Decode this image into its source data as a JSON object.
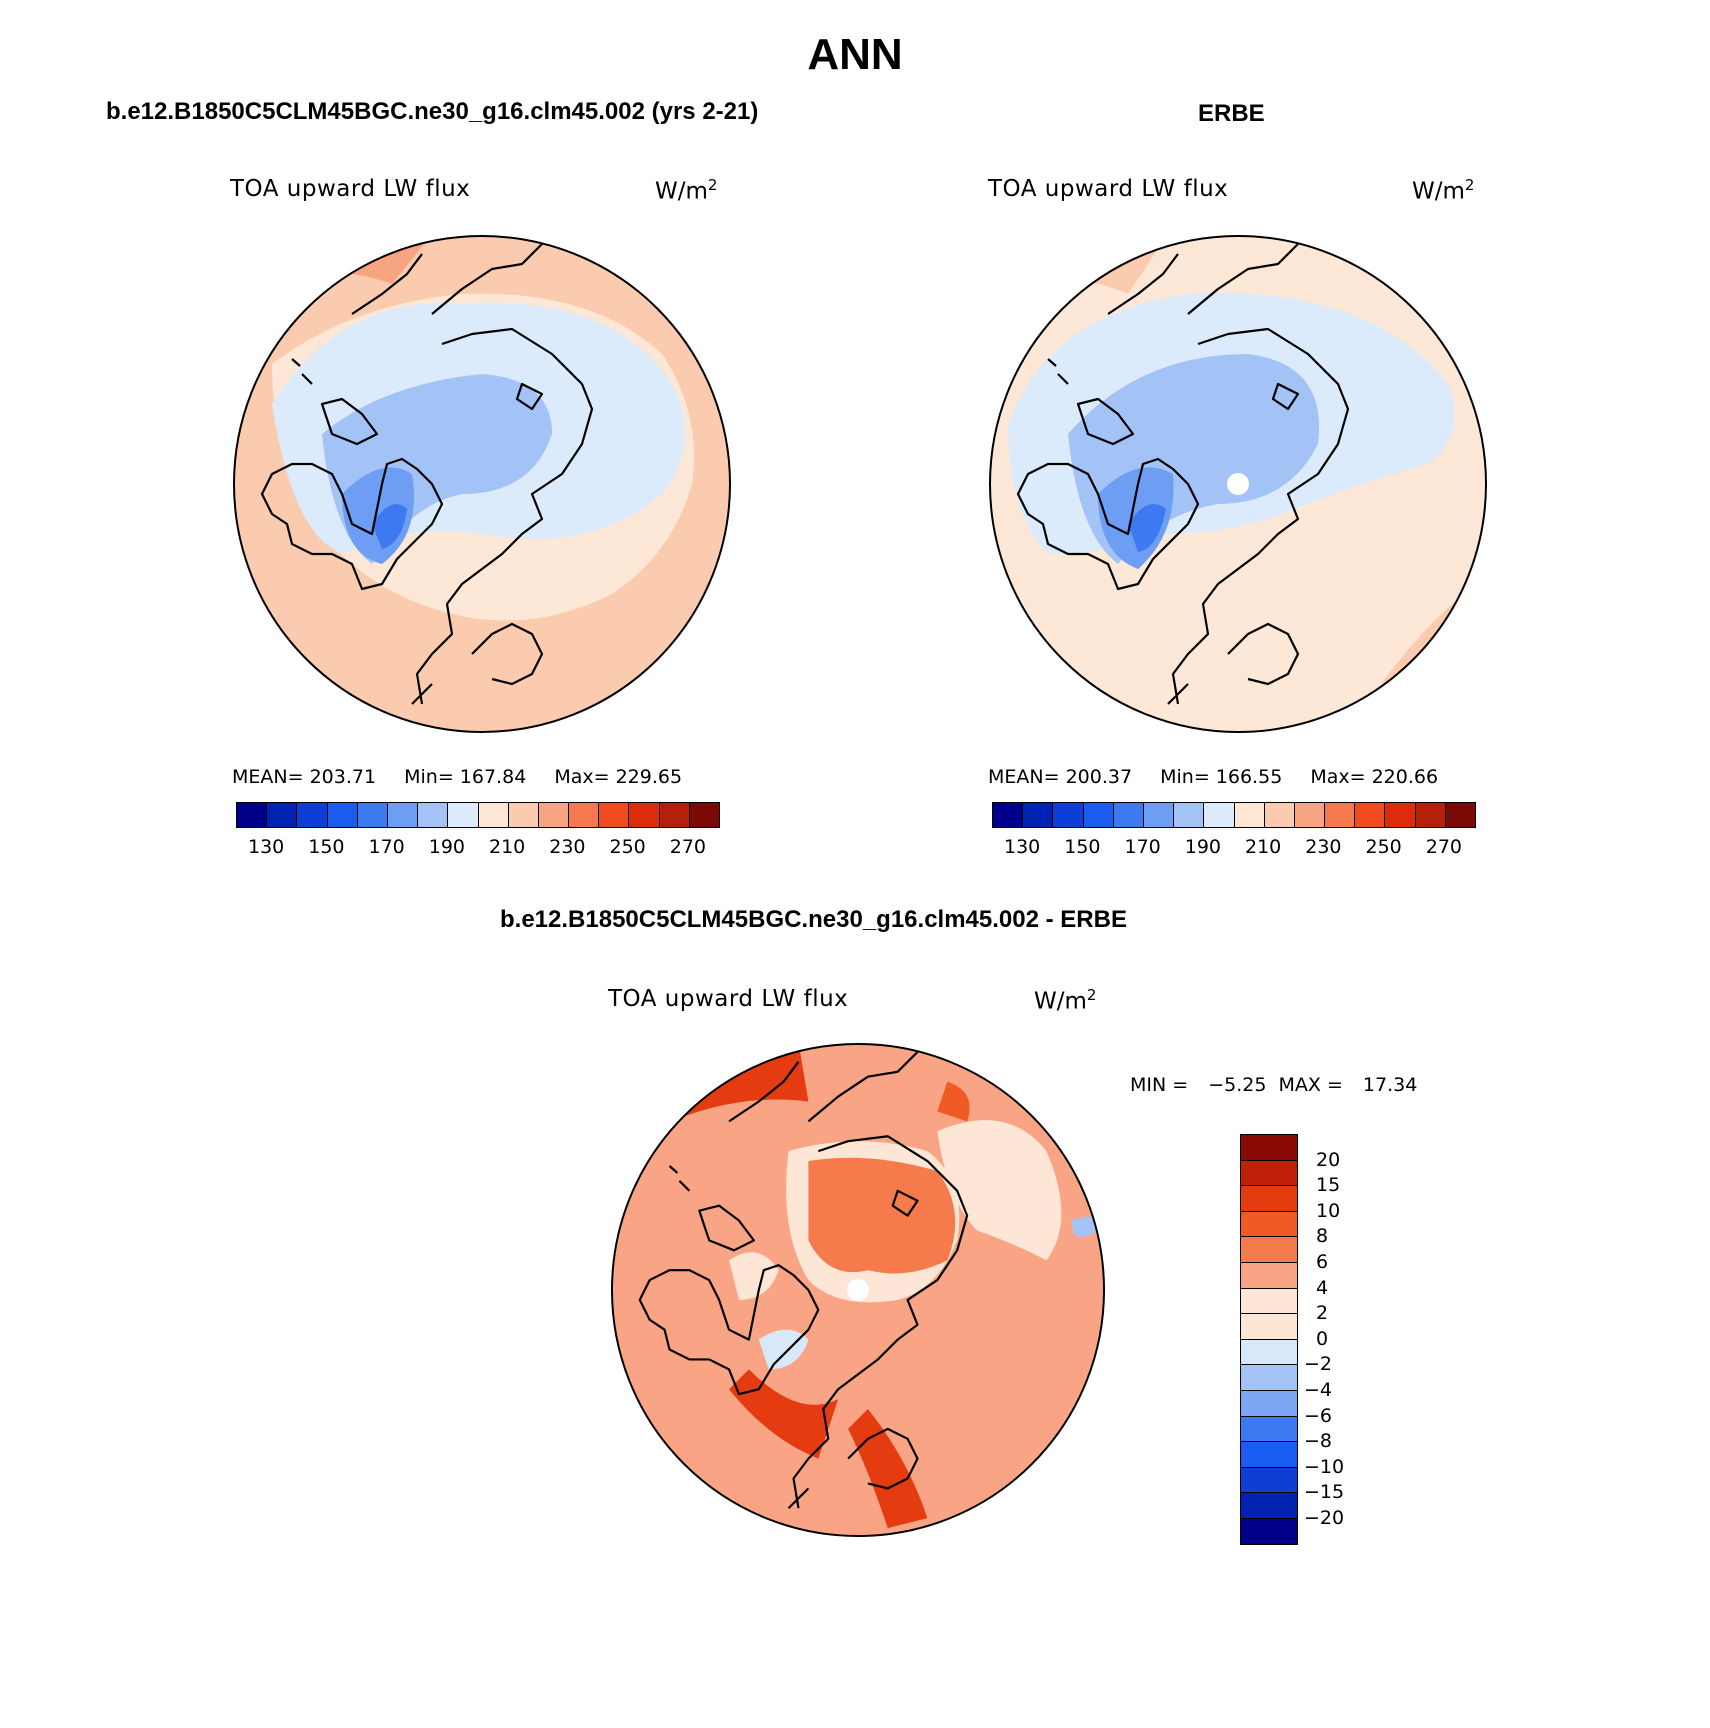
{
  "title": "ANN",
  "panels": [
    {
      "title": "b.e12.B1850C5CLM45BGC.ne30_g16.clm45.002 (yrs 2-21)",
      "variable": "TOA upward LW flux",
      "units": "W/m",
      "units_exp": "2",
      "stats": {
        "mean_label": "MEAN=",
        "mean": "203.71",
        "min_label": "Min=",
        "min": "167.84",
        "max_label": "Max=",
        "max": "229.65"
      }
    },
    {
      "title": "ERBE",
      "variable": "TOA upward LW flux",
      "units": "W/m",
      "units_exp": "2",
      "stats": {
        "mean_label": "MEAN=",
        "mean": "200.37",
        "min_label": "Min=",
        "min": "166.55",
        "max_label": "Max=",
        "max": "220.66"
      }
    },
    {
      "title": "b.e12.B1850C5CLM45BGC.ne30_g16.clm45.002 - ERBE",
      "variable": "TOA upward LW flux",
      "units": "W/m",
      "units_exp": "2",
      "stats": {
        "min_label": "MIN =",
        "min": "−5.25",
        "max_label": "MAX =",
        "max": "17.34"
      }
    }
  ],
  "colorbar_abs": {
    "ticks": [
      "130",
      "150",
      "170",
      "190",
      "210",
      "230",
      "250",
      "270"
    ],
    "colors": [
      "#00008b",
      "#0022b0",
      "#0d3fd6",
      "#1b5cf0",
      "#3d7af2",
      "#6d9ef4",
      "#a3c2f6",
      "#dbebfb",
      "#fde7d7",
      "#fbcbb0",
      "#f7a483",
      "#f5784f",
      "#f04a1e",
      "#dc2c0b",
      "#b4200a",
      "#7b0a07"
    ]
  },
  "colorbar_diff": {
    "ticks": [
      "20",
      "15",
      "10",
      "8",
      "6",
      "4",
      "2",
      "0",
      "−2",
      "−4",
      "−6",
      "−8",
      "−10",
      "−15",
      "−20"
    ],
    "colors": [
      "#8b0a05",
      "#c01f08",
      "#e43b10",
      "#f05a24",
      "#f57b4c",
      "#f9a585",
      "#fde6d6",
      "#fde6d6",
      "#d8e8fb",
      "#a6c3f7",
      "#7ea6f4",
      "#3d7af2",
      "#1b5cf0",
      "#0d3fd6",
      "#0022b0",
      "#00008b"
    ]
  },
  "map_fields": {
    "model": [
      {
        "level": 190,
        "color": "#dbebfb"
      },
      {
        "level": 180,
        "color": "#a3c2f6"
      },
      {
        "level": 170,
        "color": "#6d9ef4"
      },
      {
        "level": 160,
        "color": "#3d7af2"
      }
    ],
    "obs": [
      {
        "level": 190,
        "color": "#dbebfb"
      },
      {
        "level": 180,
        "color": "#a3c2f6"
      },
      {
        "level": 170,
        "color": "#6d9ef4"
      },
      {
        "level": 160,
        "color": "#3d7af2"
      }
    ],
    "diff": [
      {
        "level": 8,
        "color": "#f57b4c"
      },
      {
        "level": 0,
        "color": "#fde6d6"
      },
      {
        "level": -2,
        "color": "#d8e8fb"
      },
      {
        "level": -4,
        "color": "#a6c3f7"
      }
    ]
  },
  "icons": {
    "coastline": "coastline-icon"
  }
}
